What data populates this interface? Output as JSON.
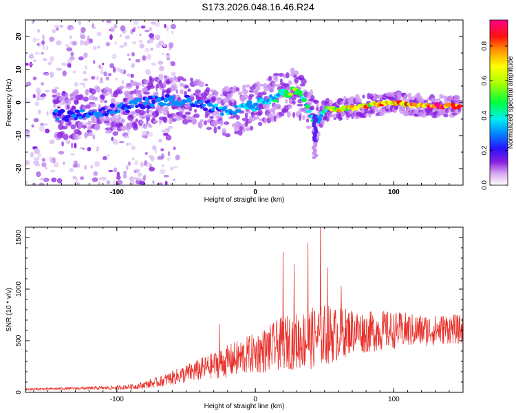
{
  "title": "S173.2026.048.16.46.R24",
  "chart_data": [
    {
      "type": "heatmap",
      "name": "spectrogram",
      "xlabel": "Height of straight line (km)",
      "ylabel": "Frequency (Hz)",
      "xlim": [
        -166,
        150
      ],
      "ylim": [
        -25,
        25
      ],
      "x_ticks": [
        -100,
        0,
        100
      ],
      "y_ticks": [
        -20,
        -10,
        0,
        10,
        20
      ],
      "colorbar": {
        "label": "Normalized spectral amplitude",
        "range": [
          0.0,
          0.95
        ],
        "ticks": [
          0.0,
          0.2,
          0.4,
          0.6,
          0.8
        ],
        "tick_labels": [
          "0.0",
          "0.2",
          "0.4",
          "0.6",
          "0.8"
        ]
      },
      "ridge": {
        "x": [
          -140,
          -120,
          -100,
          -80,
          -60,
          -40,
          -20,
          0,
          20,
          30,
          40,
          45,
          50,
          60,
          80,
          100,
          120,
          148
        ],
        "frequency": [
          -4,
          -3,
          -2,
          0,
          1,
          0,
          -3,
          -1,
          3,
          3,
          -3,
          -6,
          -2,
          -2,
          -1,
          0,
          -1,
          -1
        ],
        "amplitude": [
          0.22,
          0.25,
          0.28,
          0.24,
          0.3,
          0.26,
          0.32,
          0.35,
          0.45,
          0.5,
          0.4,
          0.3,
          0.55,
          0.68,
          0.75,
          0.8,
          0.85,
          0.8
        ]
      }
    },
    {
      "type": "line",
      "name": "snr",
      "xlabel": "Height of straight line (km)",
      "ylabel": "SNR (10 * v/v)",
      "xlim": [
        -166,
        150
      ],
      "ylim": [
        0,
        1600
      ],
      "x_ticks": [
        -100,
        0,
        100
      ],
      "y_ticks": [
        0,
        500,
        1000,
        1500
      ],
      "color": "#e8302a",
      "envelope": {
        "x": [
          -166,
          -120,
          -100,
          -85,
          -70,
          -60,
          -50,
          -40,
          -30,
          -20,
          -10,
          0,
          10,
          20,
          30,
          40,
          50,
          60,
          70,
          80,
          90,
          100,
          110,
          120,
          130,
          140,
          150
        ],
        "mean": [
          30,
          40,
          45,
          60,
          100,
          140,
          180,
          220,
          260,
          300,
          340,
          380,
          420,
          480,
          500,
          520,
          560,
          560,
          600,
          580,
          600,
          600,
          600,
          600,
          600,
          620,
          600
        ],
        "spread": [
          10,
          15,
          20,
          30,
          50,
          70,
          90,
          110,
          130,
          160,
          180,
          200,
          230,
          260,
          280,
          300,
          300,
          260,
          220,
          200,
          200,
          180,
          170,
          160,
          150,
          150,
          140
        ]
      },
      "peaks": [
        {
          "x": 20,
          "y": 1360
        },
        {
          "x": 28,
          "y": 1240
        },
        {
          "x": 38,
          "y": 1450
        },
        {
          "x": 47,
          "y": 1600
        },
        {
          "x": 52,
          "y": 1210
        },
        {
          "x": -26,
          "y": 660
        },
        {
          "x": 62,
          "y": 1030
        }
      ]
    }
  ]
}
